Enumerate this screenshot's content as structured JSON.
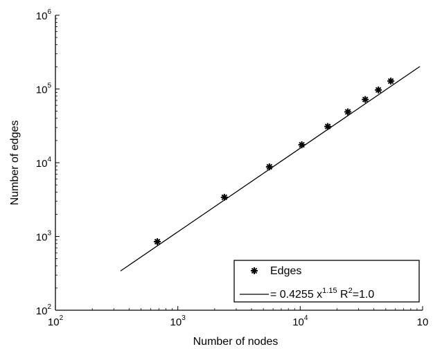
{
  "chart_data": {
    "type": "scatter",
    "scale": {
      "x": "log",
      "y": "log"
    },
    "xlabel": "Number of nodes",
    "ylabel": "Number of edges",
    "xlim": [
      100,
      100000
    ],
    "ylim": [
      100,
      1000000
    ],
    "x_ticks": [
      {
        "base": "10",
        "exp": "2"
      },
      {
        "base": "10",
        "exp": "3"
      },
      {
        "base": "10",
        "exp": "4"
      },
      {
        "base": "10",
        "exp": ""
      }
    ],
    "y_ticks": [
      {
        "base": "10",
        "exp": "2"
      },
      {
        "base": "10",
        "exp": "3"
      },
      {
        "base": "10",
        "exp": "4"
      },
      {
        "base": "10",
        "exp": "5"
      },
      {
        "base": "10",
        "exp": "6"
      }
    ],
    "series": [
      {
        "name": "Edges",
        "kind": "scatter",
        "marker": "asterisk",
        "x": [
          680,
          2400,
          5600,
          10300,
          16800,
          24500,
          34000,
          43500,
          55000
        ],
        "y": [
          850,
          3400,
          8800,
          17500,
          31000,
          49000,
          72000,
          97000,
          128000
        ]
      },
      {
        "kind": "line",
        "x": [
          340,
          95000
        ],
        "y": [
          340,
          202000
        ]
      }
    ],
    "legend": {
      "placement": "bottom-right",
      "entries": [
        {
          "marker": "asterisk",
          "label": "Edges"
        },
        {
          "marker": "line",
          "label_prefix": "= 0.4255 x",
          "label_sup": "1.15",
          "label_mid": " R",
          "label_sup2": "2",
          "label_suffix": "=1.0"
        }
      ]
    },
    "grid": false
  }
}
